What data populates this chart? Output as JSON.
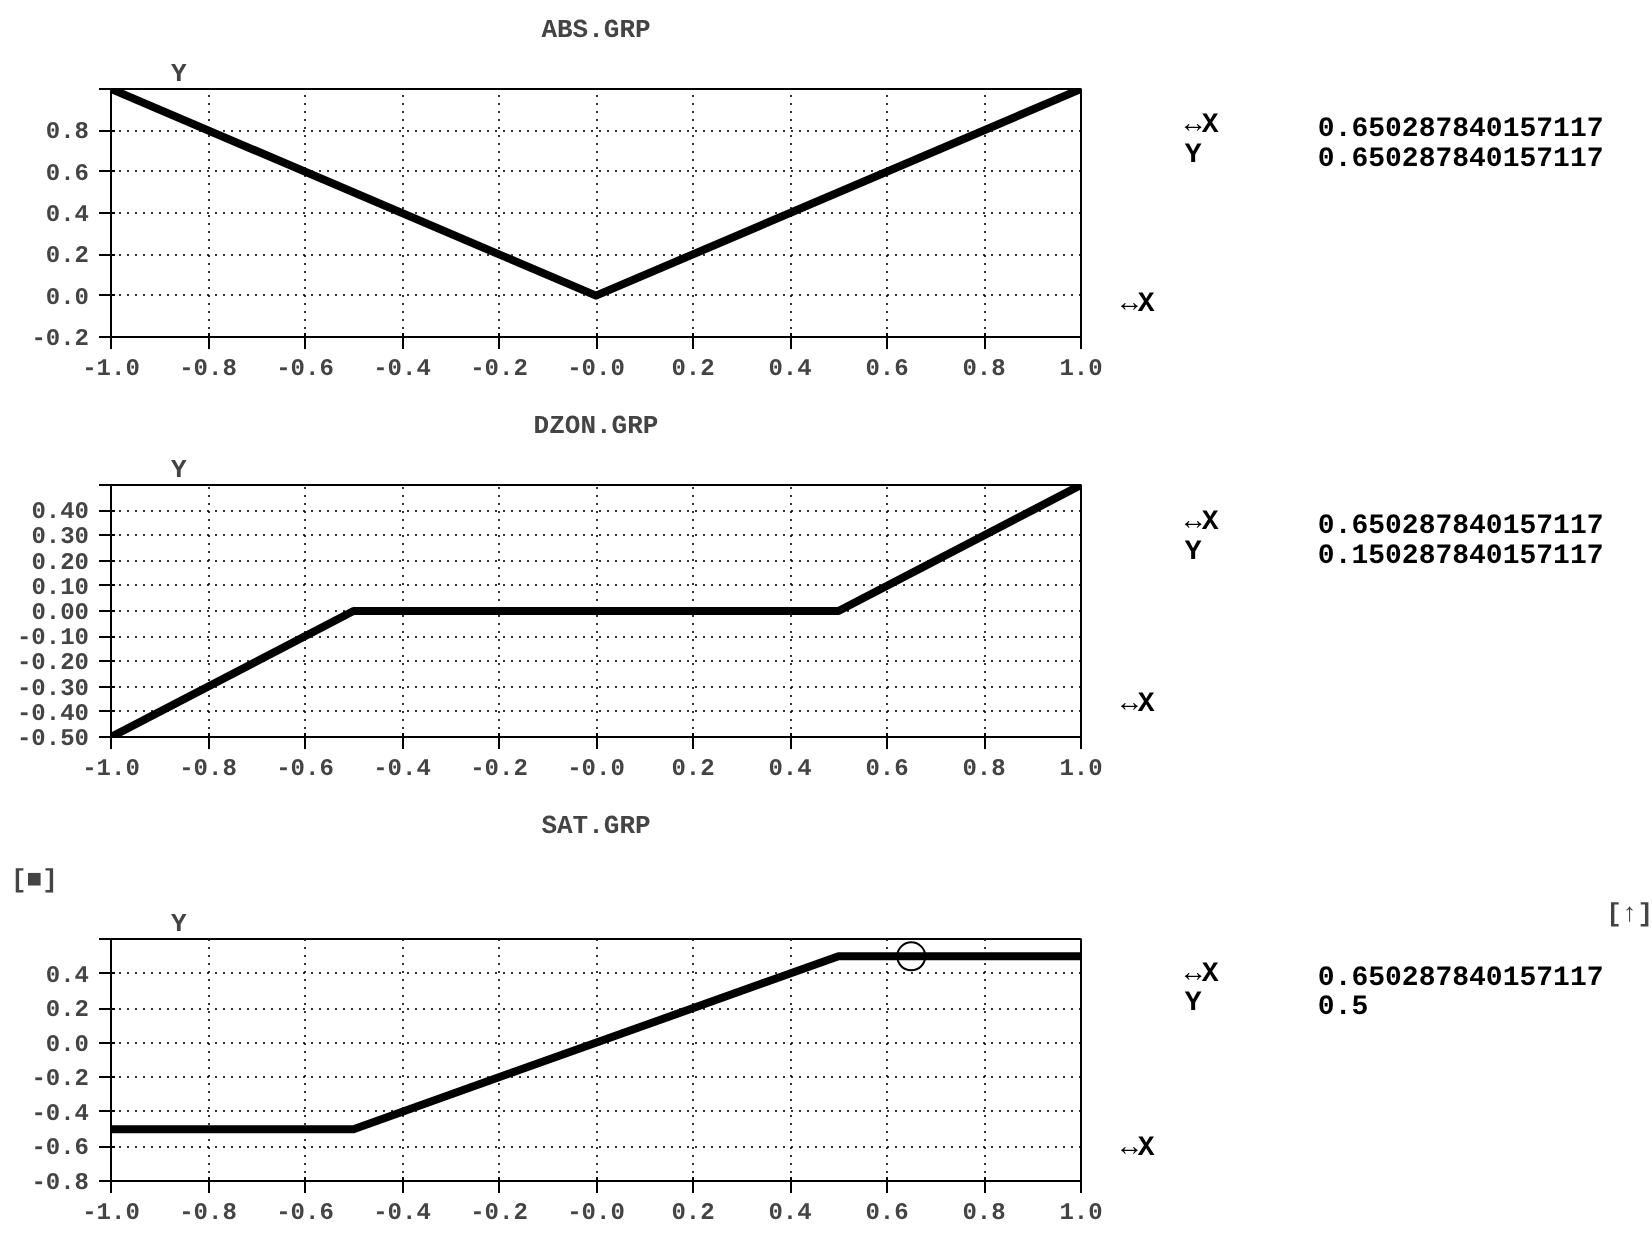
{
  "chart_data": [
    {
      "type": "line",
      "title": "ABS.GRP",
      "xlabel": "↔X",
      "ylabel": "Y",
      "x": [
        -1.0,
        0.0,
        1.0
      ],
      "series": [
        {
          "color": "#000000",
          "values": [
            1.0,
            0.0,
            1.0
          ]
        }
      ],
      "xlim": [
        -1.0,
        1.0
      ],
      "ylim": [
        -0.2,
        1.0
      ],
      "xticks": [
        {
          "value": -1,
          "label": "-1.0"
        },
        -0.8,
        -0.6,
        -0.4,
        -0.2,
        {
          "value": 0,
          "label": "-0.0"
        },
        0.2,
        0.4,
        0.6,
        0.8,
        {
          "value": 1,
          "label": "1.0"
        }
      ],
      "yticks": [
        -0.2,
        {
          "value": 0,
          "label": "0.0"
        },
        0.2,
        0.4,
        0.6,
        0.8,
        {
          "value": 1.0,
          "label": null
        }
      ],
      "grid": true,
      "annotations": [
        "↔X",
        "0.650287840157117",
        "Y",
        "0.650287840157117"
      ]
    },
    {
      "type": "line",
      "title": "DZON.GRP",
      "xlabel": "↔X",
      "ylabel": "Y",
      "x": [
        -1.0,
        -0.5,
        0.5,
        1.0
      ],
      "series": [
        {
          "color": "#000000",
          "values": [
            -0.5,
            0.0,
            0.0,
            0.5
          ]
        }
      ],
      "xlim": [
        -1.0,
        1.0
      ],
      "ylim": [
        -0.5,
        0.5
      ],
      "xticks": [
        {
          "value": -1,
          "label": "-1.0"
        },
        -0.8,
        -0.6,
        -0.4,
        -0.2,
        {
          "value": 0,
          "label": "-0.0"
        },
        0.2,
        0.4,
        0.6,
        0.8,
        {
          "value": 1,
          "label": "1.0"
        }
      ],
      "yticks": [
        {
          "value": -0.5,
          "label": "-0.50"
        },
        {
          "value": -0.4,
          "label": "-0.40"
        },
        {
          "value": -0.3,
          "label": "-0.30"
        },
        {
          "value": -0.2,
          "label": "-0.20"
        },
        {
          "value": -0.1,
          "label": "-0.10"
        },
        {
          "value": 0.0,
          "label": "0.00"
        },
        {
          "value": 0.1,
          "label": "0.10"
        },
        {
          "value": 0.2,
          "label": "0.20"
        },
        {
          "value": 0.3,
          "label": "0.30"
        },
        {
          "value": 0.4,
          "label": "0.40"
        },
        {
          "value": 0.5,
          "label": null
        }
      ],
      "grid": true,
      "annotations": [
        "↔X",
        "0.650287840157117",
        "Y",
        "0.150287840157117"
      ]
    },
    {
      "type": "line",
      "title": "SAT.GRP",
      "xlabel": "↔X",
      "ylabel": "Y",
      "x": [
        -1.0,
        -0.5,
        0.5,
        1.0
      ],
      "series": [
        {
          "color": "#000000",
          "values": [
            -0.5,
            -0.5,
            0.5,
            0.5
          ]
        },
        {
          "type": "scatter",
          "marker": "circle",
          "color": "#000000",
          "x": [
            0.65
          ],
          "values": [
            0.5
          ]
        }
      ],
      "xlim": [
        -1.0,
        1.0
      ],
      "ylim": [
        -0.8,
        0.6
      ],
      "xticks": [
        {
          "value": -1,
          "label": "-1.0"
        },
        -0.8,
        -0.6,
        -0.4,
        -0.2,
        {
          "value": 0,
          "label": "-0.0"
        },
        0.2,
        0.4,
        0.6,
        0.8,
        {
          "value": 1,
          "label": "1.0"
        }
      ],
      "yticks": [
        -0.8,
        -0.6,
        -0.4,
        -0.2,
        {
          "value": 0,
          "label": "0.0"
        },
        0.2,
        0.4,
        {
          "value": 0.6,
          "label": null
        }
      ],
      "grid": true,
      "annotations": [
        "↔X",
        "0.650287840157117",
        "Y",
        "0.5",
        "[■]",
        "[↑]"
      ]
    }
  ]
}
